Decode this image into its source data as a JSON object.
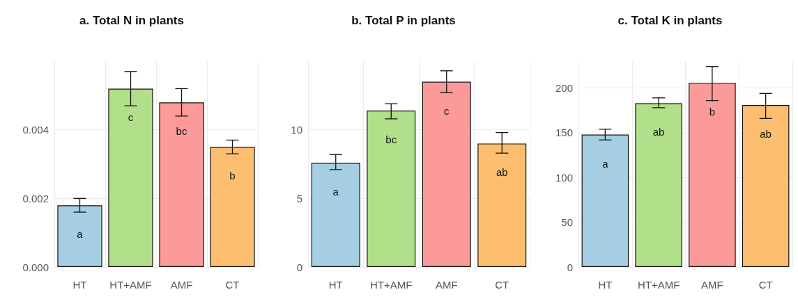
{
  "chart_data": [
    {
      "type": "bar",
      "title": "a. Total N in plants",
      "categories": [
        "HT",
        "HT+AMF",
        "AMF",
        "CT"
      ],
      "values": [
        0.0018,
        0.0052,
        0.0048,
        0.0035
      ],
      "colors": [
        "#a6cee3",
        "#b2df8a",
        "#fb9a99",
        "#fdbf6f"
      ],
      "errors": [
        [
          0.0016,
          0.002
        ],
        [
          0.0047,
          0.0057
        ],
        [
          0.0044,
          0.0052
        ],
        [
          0.0033,
          0.0037
        ]
      ],
      "ylim": [
        0,
        0.006
      ],
      "yticks": [
        {
          "value": 0,
          "label": "0.000"
        },
        {
          "value": 0.002,
          "label": "0.002"
        },
        {
          "value": 0.004,
          "label": "0.004"
        }
      ],
      "grid": true,
      "value_labels": [
        "a",
        "c",
        "bc",
        "b"
      ]
    },
    {
      "type": "bar",
      "title": "b. Total P in plants",
      "categories": [
        "HT",
        "HT+AMF",
        "AMF",
        "CT"
      ],
      "values": [
        7.6,
        11.4,
        13.5,
        9.0
      ],
      "colors": [
        "#a6cee3",
        "#b2df8a",
        "#fb9a99",
        "#fdbf6f"
      ],
      "errors": [
        [
          7.1,
          8.2
        ],
        [
          10.8,
          11.9
        ],
        [
          12.7,
          14.3
        ],
        [
          8.3,
          9.8
        ]
      ],
      "ylim": [
        0,
        15
      ],
      "yticks": [
        0,
        5,
        10
      ],
      "grid": true,
      "value_labels": [
        "a",
        "bc",
        "c",
        "ab"
      ]
    },
    {
      "type": "bar",
      "title": "c. Total K in plants",
      "categories": [
        "HT",
        "HT+AMF",
        "AMF",
        "CT"
      ],
      "values": [
        148,
        183,
        206,
        181
      ],
      "colors": [
        "#a6cee3",
        "#b2df8a",
        "#fb9a99",
        "#fdbf6f"
      ],
      "errors": [
        [
          142,
          154
        ],
        [
          178,
          189
        ],
        [
          186,
          224
        ],
        [
          166,
          194
        ]
      ],
      "ylim": [
        0,
        230
      ],
      "yticks": [
        0,
        50,
        100,
        150,
        200
      ],
      "grid": true,
      "value_labels": [
        "a",
        "ab",
        "b",
        "ab"
      ]
    }
  ]
}
